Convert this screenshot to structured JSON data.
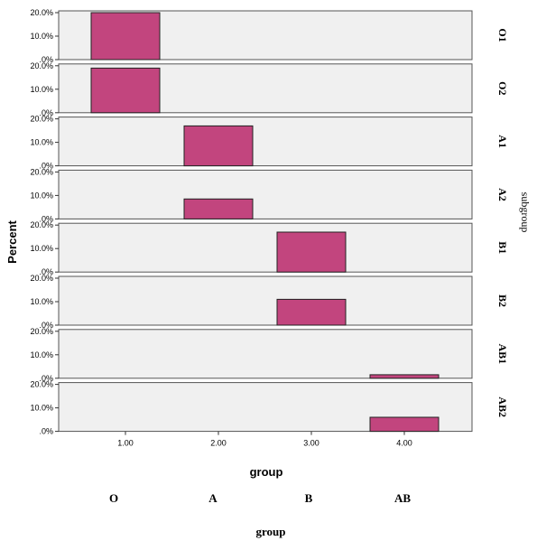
{
  "chart_data": {
    "type": "bar",
    "layout": "faceted-rows",
    "xlabel": "group",
    "ylabel": "Percent",
    "x_ticks": [
      "1.00",
      "2.00",
      "3.00",
      "4.00"
    ],
    "y_ticks": [
      ".0%",
      "10.0%",
      "20.0%"
    ],
    "ylim": [
      0,
      20
    ],
    "facet_title": "subgroup",
    "bar_color": "#c2457e",
    "panel_bg": "#f0f0f0",
    "facets": [
      {
        "label": "O1",
        "x": 1,
        "value": 20.0
      },
      {
        "label": "O2",
        "x": 1,
        "value": 19.0
      },
      {
        "label": "A1",
        "x": 2,
        "value": 17.0
      },
      {
        "label": "A2",
        "x": 2,
        "value": 8.5
      },
      {
        "label": "B1",
        "x": 3,
        "value": 17.0
      },
      {
        "label": "B2",
        "x": 3,
        "value": 11.0
      },
      {
        "label": "AB1",
        "x": 4,
        "value": 1.5
      },
      {
        "label": "AB2",
        "x": 4,
        "value": 6.0
      }
    ],
    "categories": [
      "O",
      "A",
      "B",
      "AB"
    ],
    "lower_title": "group"
  }
}
